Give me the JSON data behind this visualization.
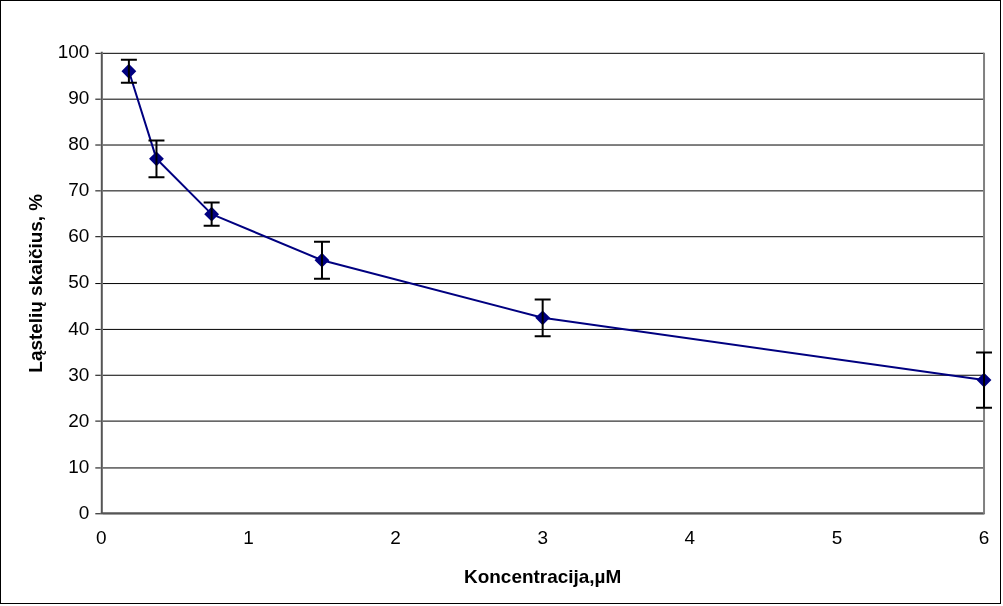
{
  "chart_data": {
    "type": "line",
    "xlabel": "Koncentracija,µM",
    "ylabel": "Ląstelių skaičius, %",
    "x": [
      0.1875,
      0.375,
      0.75,
      1.5,
      3,
      6
    ],
    "series": [
      {
        "color": "#000080",
        "values": [
          96,
          77,
          65,
          55,
          42.5,
          29
        ],
        "errors": [
          2.5,
          4,
          2.5,
          4,
          4,
          6
        ]
      }
    ],
    "xlim": [
      0,
      6
    ],
    "xticks": [
      0,
      1,
      2,
      3,
      4,
      5,
      6
    ],
    "ylim": [
      0,
      100
    ],
    "yticks": [
      0,
      10,
      20,
      30,
      40,
      50,
      60,
      70,
      80,
      90,
      100
    ],
    "grid": "y",
    "marker": "diamond",
    "line_style": "solid",
    "legend": false
  }
}
